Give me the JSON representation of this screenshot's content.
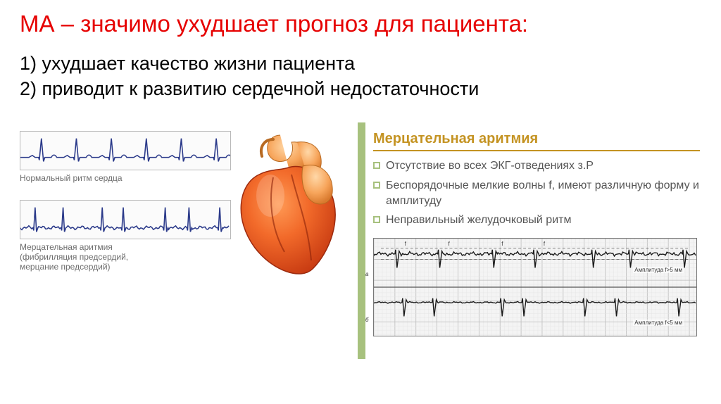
{
  "colors": {
    "title": "#e60000",
    "body": "#000000",
    "caption": "#6d6d6d",
    "accent_green": "#a7c17e",
    "accent_gold": "#c49322",
    "bullet_text": "#555555",
    "ecg_line": "#2b3a8a",
    "ecg_line2": "#1a1a1a"
  },
  "title": "МА – значимо ухудшает прогноз для пациента:",
  "list": {
    "item1": "1)  ухудшает качество жизни пациента",
    "item2": "2) приводит к развитию сердечной недостаточности"
  },
  "left": {
    "normal_caption": "Нормальный ритм сердца",
    "af_caption_l1": "Мерцательная аритмия",
    "af_caption_l2": "(фибрилляция предсердий,",
    "af_caption_l3": "мерцание предсердий)",
    "normal_ecg": {
      "baseline": 38,
      "beats": 6,
      "period": 50,
      "r_height": 28,
      "color": "#2b3a8a"
    },
    "af_ecg": {
      "baseline": 40,
      "r_positions": [
        18,
        58,
        115,
        145,
        205,
        238,
        282
      ],
      "r_height": 30,
      "fib_amp": 3,
      "color": "#2b3a8a"
    }
  },
  "right": {
    "heading": "Мерцательная аритмия",
    "bullets": [
      "Отсутствие во всех ЭКГ-отведениях з.Р",
      "Беспорядочные мелкие волны f, имеют различную форму и амплитуду",
      "Неправильный желудочковый ритм"
    ],
    "ann_top": "Амплитуда f>5 мм",
    "ann_bot": "Амплитуда f<5 мм",
    "row_a_label": "а",
    "row_b_label": "б",
    "ecg_a": {
      "r_positions": [
        30,
        92,
        168,
        228,
        310,
        364,
        440
      ],
      "baseline": 22,
      "r_down": 20,
      "r_up": 6,
      "fib_amp": 3
    },
    "ecg_b": {
      "r_positions": [
        40,
        84,
        180,
        212,
        298,
        344,
        432
      ],
      "baseline": 22,
      "r_down": 20,
      "r_up": 6,
      "fib_amp": 1.2
    }
  }
}
